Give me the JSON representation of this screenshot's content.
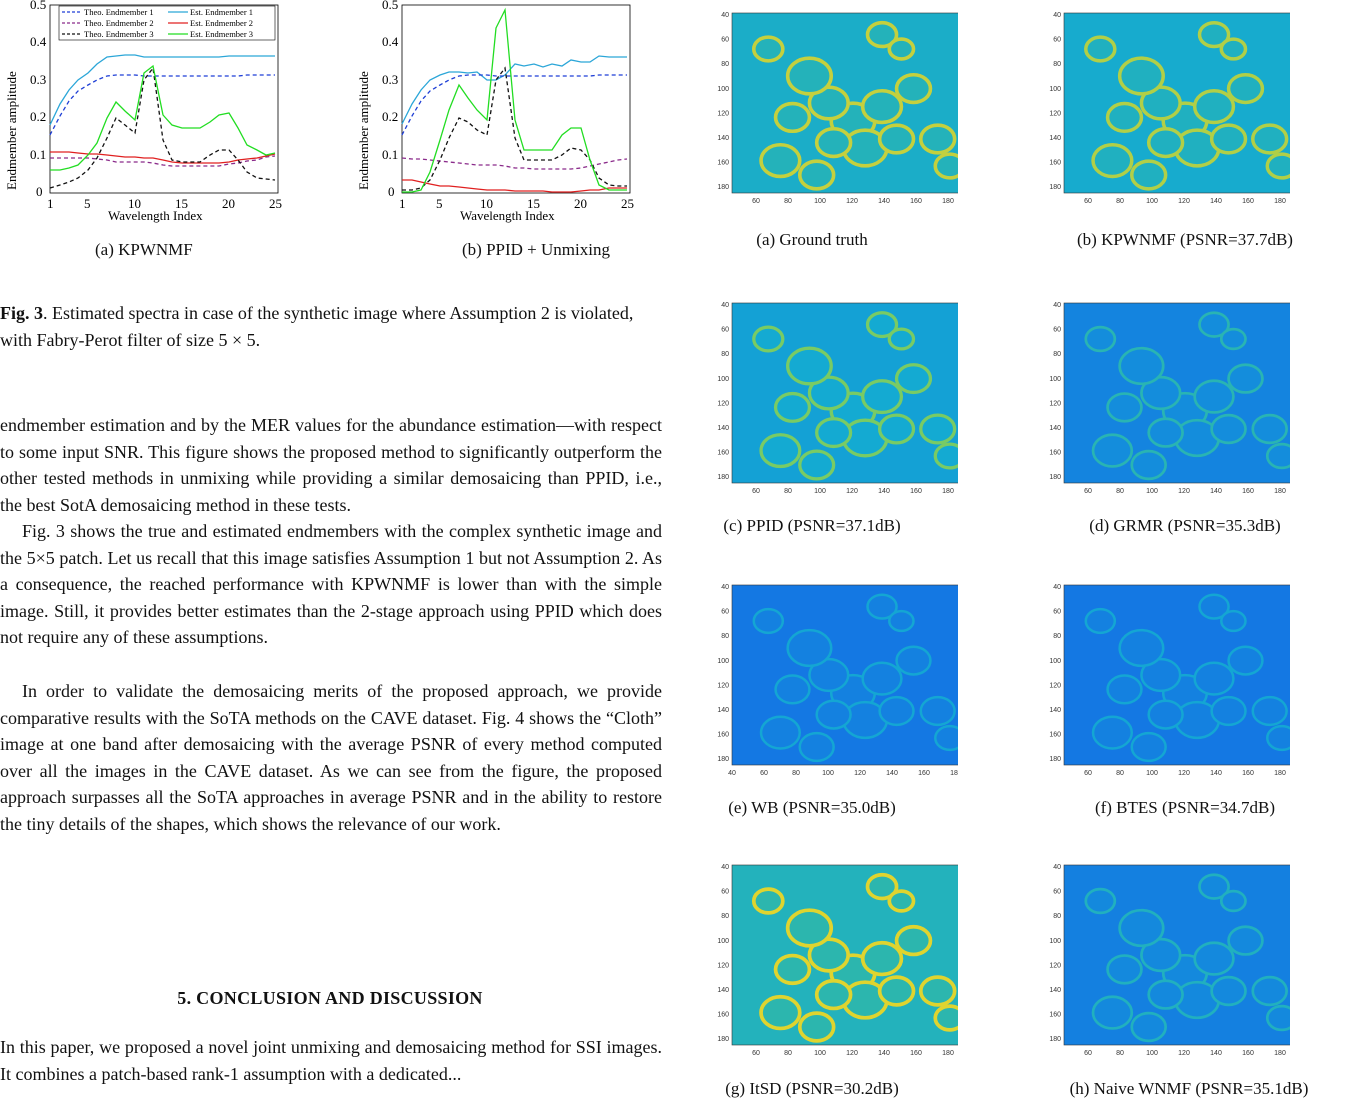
{
  "fig3": {
    "plots": [
      {
        "label": "(a)  KPWNMF",
        "ylabel": "Endmember amplitude",
        "xlabel": "Wavelength Index",
        "xticks": [
          "1",
          "5",
          "10",
          "15",
          "20",
          "25"
        ],
        "yticks": [
          "0",
          "0.1",
          "0.2",
          "0.3",
          "0.4",
          "0.5"
        ],
        "legend": [
          "Theo. Endmember 1",
          "Est. Endmember 1",
          "Theo. Endmember 2",
          "Est. Endmember 2",
          "Theo. Endmember 3",
          "Est. Endmember 3"
        ]
      },
      {
        "label": "(b)  PPID + Unmixing",
        "ylabel": "Endmember amplitude",
        "xlabel": "Wavelength Index",
        "xticks": [
          "1",
          "5",
          "10",
          "15",
          "20",
          "25"
        ],
        "yticks": [
          "0",
          "0.1",
          "0.2",
          "0.3",
          "0.4",
          "0.5"
        ]
      }
    ],
    "caption_prefix": "Fig. 3",
    "caption_text": ". Estimated spectra in case of the synthetic image where Assumption 2 is violated, with Fabry-Perot filter of size 5 × 5."
  },
  "body": {
    "p1": "endmember estimation and by the MER values for the abundance estimation—with respect to some input SNR. This figure shows the proposed method to significantly outperform the other tested methods in unmixing while providing a similar demosaicing than PPID, i.e., the best SotA demosaicing method in these tests.",
    "p2": "Fig. 3 shows the true and estimated endmembers with the complex synthetic image and the 5×5 patch. Let us recall that this image satisfies Assumption 1 but not Assumption 2. As a consequence, the reached performance with KPWNMF is lower than with the simple image. Still, it provides better estimates than the 2-stage approach using PPID which does not require any of these assumptions.",
    "p3": "In order to validate the demosaicing merits of the proposed approach, we provide comparative results with the SoTA methods on the CAVE dataset. Fig. 4 shows the “Cloth” image at one band after demosaicing with the average PSNR of every method computed over all the images in the CAVE dataset. As we can see from the figure, the proposed approach surpasses all the SoTA approaches in average PSNR and in the ability to restore the tiny details of the shapes, which shows the relevance of our work.",
    "section_heading": "5. CONCLUSION AND DISCUSSION",
    "p4": "In this paper, we proposed a novel joint unmixing and demosaicing method for SSI images. It combines a patch-based rank-1 assumption with a dedicated..."
  },
  "fig4": {
    "panels": [
      {
        "caption": "(a)  Ground truth",
        "intensity": 0.9
      },
      {
        "caption": "(b)  KPWNMF (PSNR=37.7dB)",
        "intensity": 0.85
      },
      {
        "caption": "(c)  PPID (PSNR=37.1dB)",
        "intensity": 0.7
      },
      {
        "caption": "(d)  GRMR (PSNR=35.3dB)",
        "intensity": 0.35
      },
      {
        "caption": "(e)  WB (PSNR=35.0dB)",
        "intensity": 0.2
      },
      {
        "caption": "(f)  BTES (PSNR=34.7dB)",
        "intensity": 0.2
      },
      {
        "caption": "(g)  ItSD (PSNR=30.2dB)",
        "intensity": 1.0
      },
      {
        "caption": "(h)  Naive WNMF (PSNR=35.1dB)",
        "intensity": 0.3
      }
    ],
    "yticks": [
      "40",
      "60",
      "80",
      "100",
      "120",
      "140",
      "160",
      "180"
    ],
    "xticks": [
      "60",
      "80",
      "100",
      "120",
      "140",
      "160",
      "180"
    ],
    "xticks_e": [
      "40",
      "60",
      "80",
      "100",
      "120",
      "140",
      "160",
      "180"
    ]
  },
  "colors": {
    "theo1": "#1f3fd6",
    "est1": "#2ba6d8",
    "theo2": "#8a2a8a",
    "est2": "#e02020",
    "theo3": "#111111",
    "est3": "#22dd22"
  }
}
